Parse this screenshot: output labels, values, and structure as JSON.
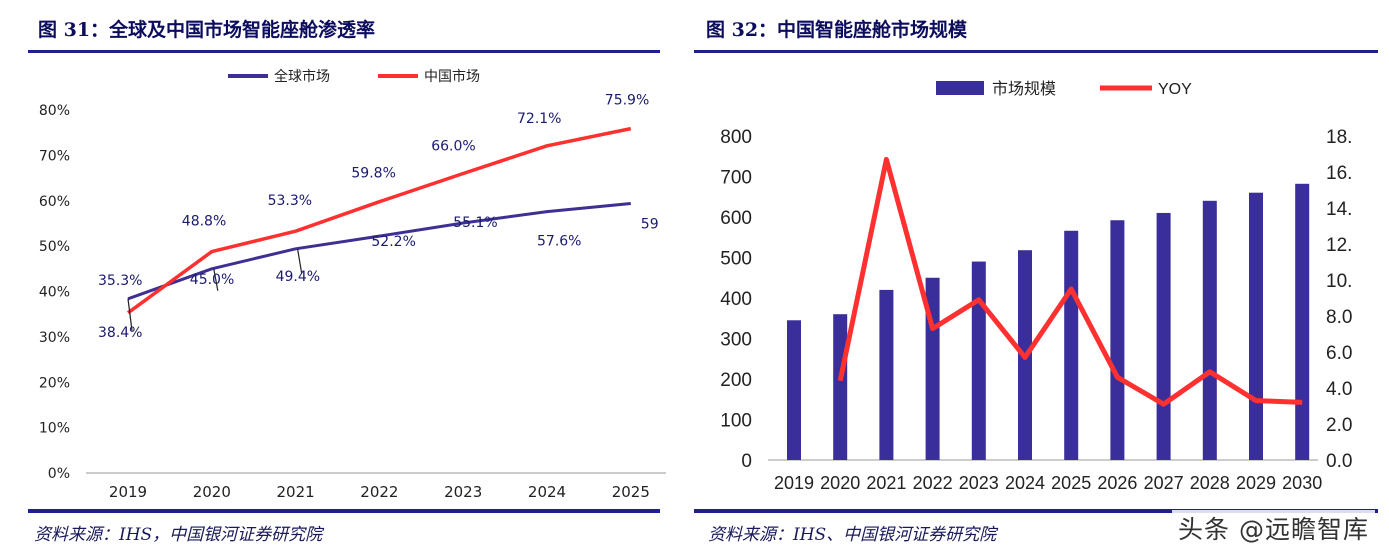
{
  "left": {
    "title": "图 31：全球及中国市场智能座舱渗透率",
    "source": "资料来源：IHS，中国银河证券研究院"
  },
  "right": {
    "title": "图 32：中国智能座舱市场规模",
    "source": "资料来源：IHS、中国银河证券研究院"
  },
  "watermark": "头条 @远瞻智库",
  "colors": {
    "navy": "#3d3092",
    "red": "#ff3030",
    "bar": "#3a2f9a",
    "axis_text": "#222222",
    "label_text": "#1a1a6e"
  },
  "chart_data": [
    {
      "type": "line",
      "title": "",
      "x": [
        "2019",
        "2020",
        "2021",
        "2022",
        "2023",
        "2024",
        "2025"
      ],
      "yticks": [
        "0%",
        "10%",
        "20%",
        "30%",
        "40%",
        "50%",
        "60%",
        "70%",
        "80%"
      ],
      "ylim": [
        0,
        80
      ],
      "grid": false,
      "legend": "top",
      "series": [
        {
          "name": "全球市场",
          "color": "#3d3092",
          "values": [
            38.4,
            45.0,
            49.4,
            52.2,
            55.1,
            57.6,
            59.4
          ],
          "labels": [
            "38.4%",
            "45.0%",
            "49.4%",
            "52.2%",
            "55.1%",
            "57.6%",
            "59"
          ]
        },
        {
          "name": "中国市场",
          "color": "#ff3030",
          "values": [
            35.3,
            48.8,
            53.3,
            59.8,
            66.0,
            72.1,
            75.9
          ],
          "labels": [
            "35.3%",
            "48.8%",
            "53.3%",
            "59.8%",
            "66.0%",
            "72.1%",
            "75.9%"
          ]
        }
      ]
    },
    {
      "type": "bar",
      "title": "",
      "categories": [
        "2019",
        "2020",
        "2021",
        "2022",
        "2023",
        "2024",
        "2025",
        "2026",
        "2027",
        "2028",
        "2029",
        "2030"
      ],
      "yticks_left": [
        "0",
        "100",
        "200",
        "300",
        "400",
        "500",
        "600",
        "700",
        "800"
      ],
      "ylim_left": [
        0,
        800
      ],
      "yticks_right": [
        "0.0",
        "2.0",
        "4.0",
        "6.0",
        "8.0",
        "10.",
        "12.",
        "14.",
        "16.",
        "18."
      ],
      "ylim_right": [
        0,
        18
      ],
      "grid": false,
      "legend": "top",
      "series": [
        {
          "name": "市场规模",
          "type": "bar",
          "axis": "left",
          "color": "#3a2f9a",
          "values": [
            345,
            360,
            420,
            450,
            490,
            518,
            566,
            592,
            610,
            640,
            660,
            682
          ]
        },
        {
          "name": "YOY",
          "type": "line",
          "axis": "right",
          "color": "#ff3030",
          "values": [
            null,
            4.4,
            16.7,
            7.3,
            8.9,
            5.7,
            9.5,
            4.6,
            3.1,
            4.9,
            3.3,
            3.2
          ]
        }
      ]
    }
  ]
}
